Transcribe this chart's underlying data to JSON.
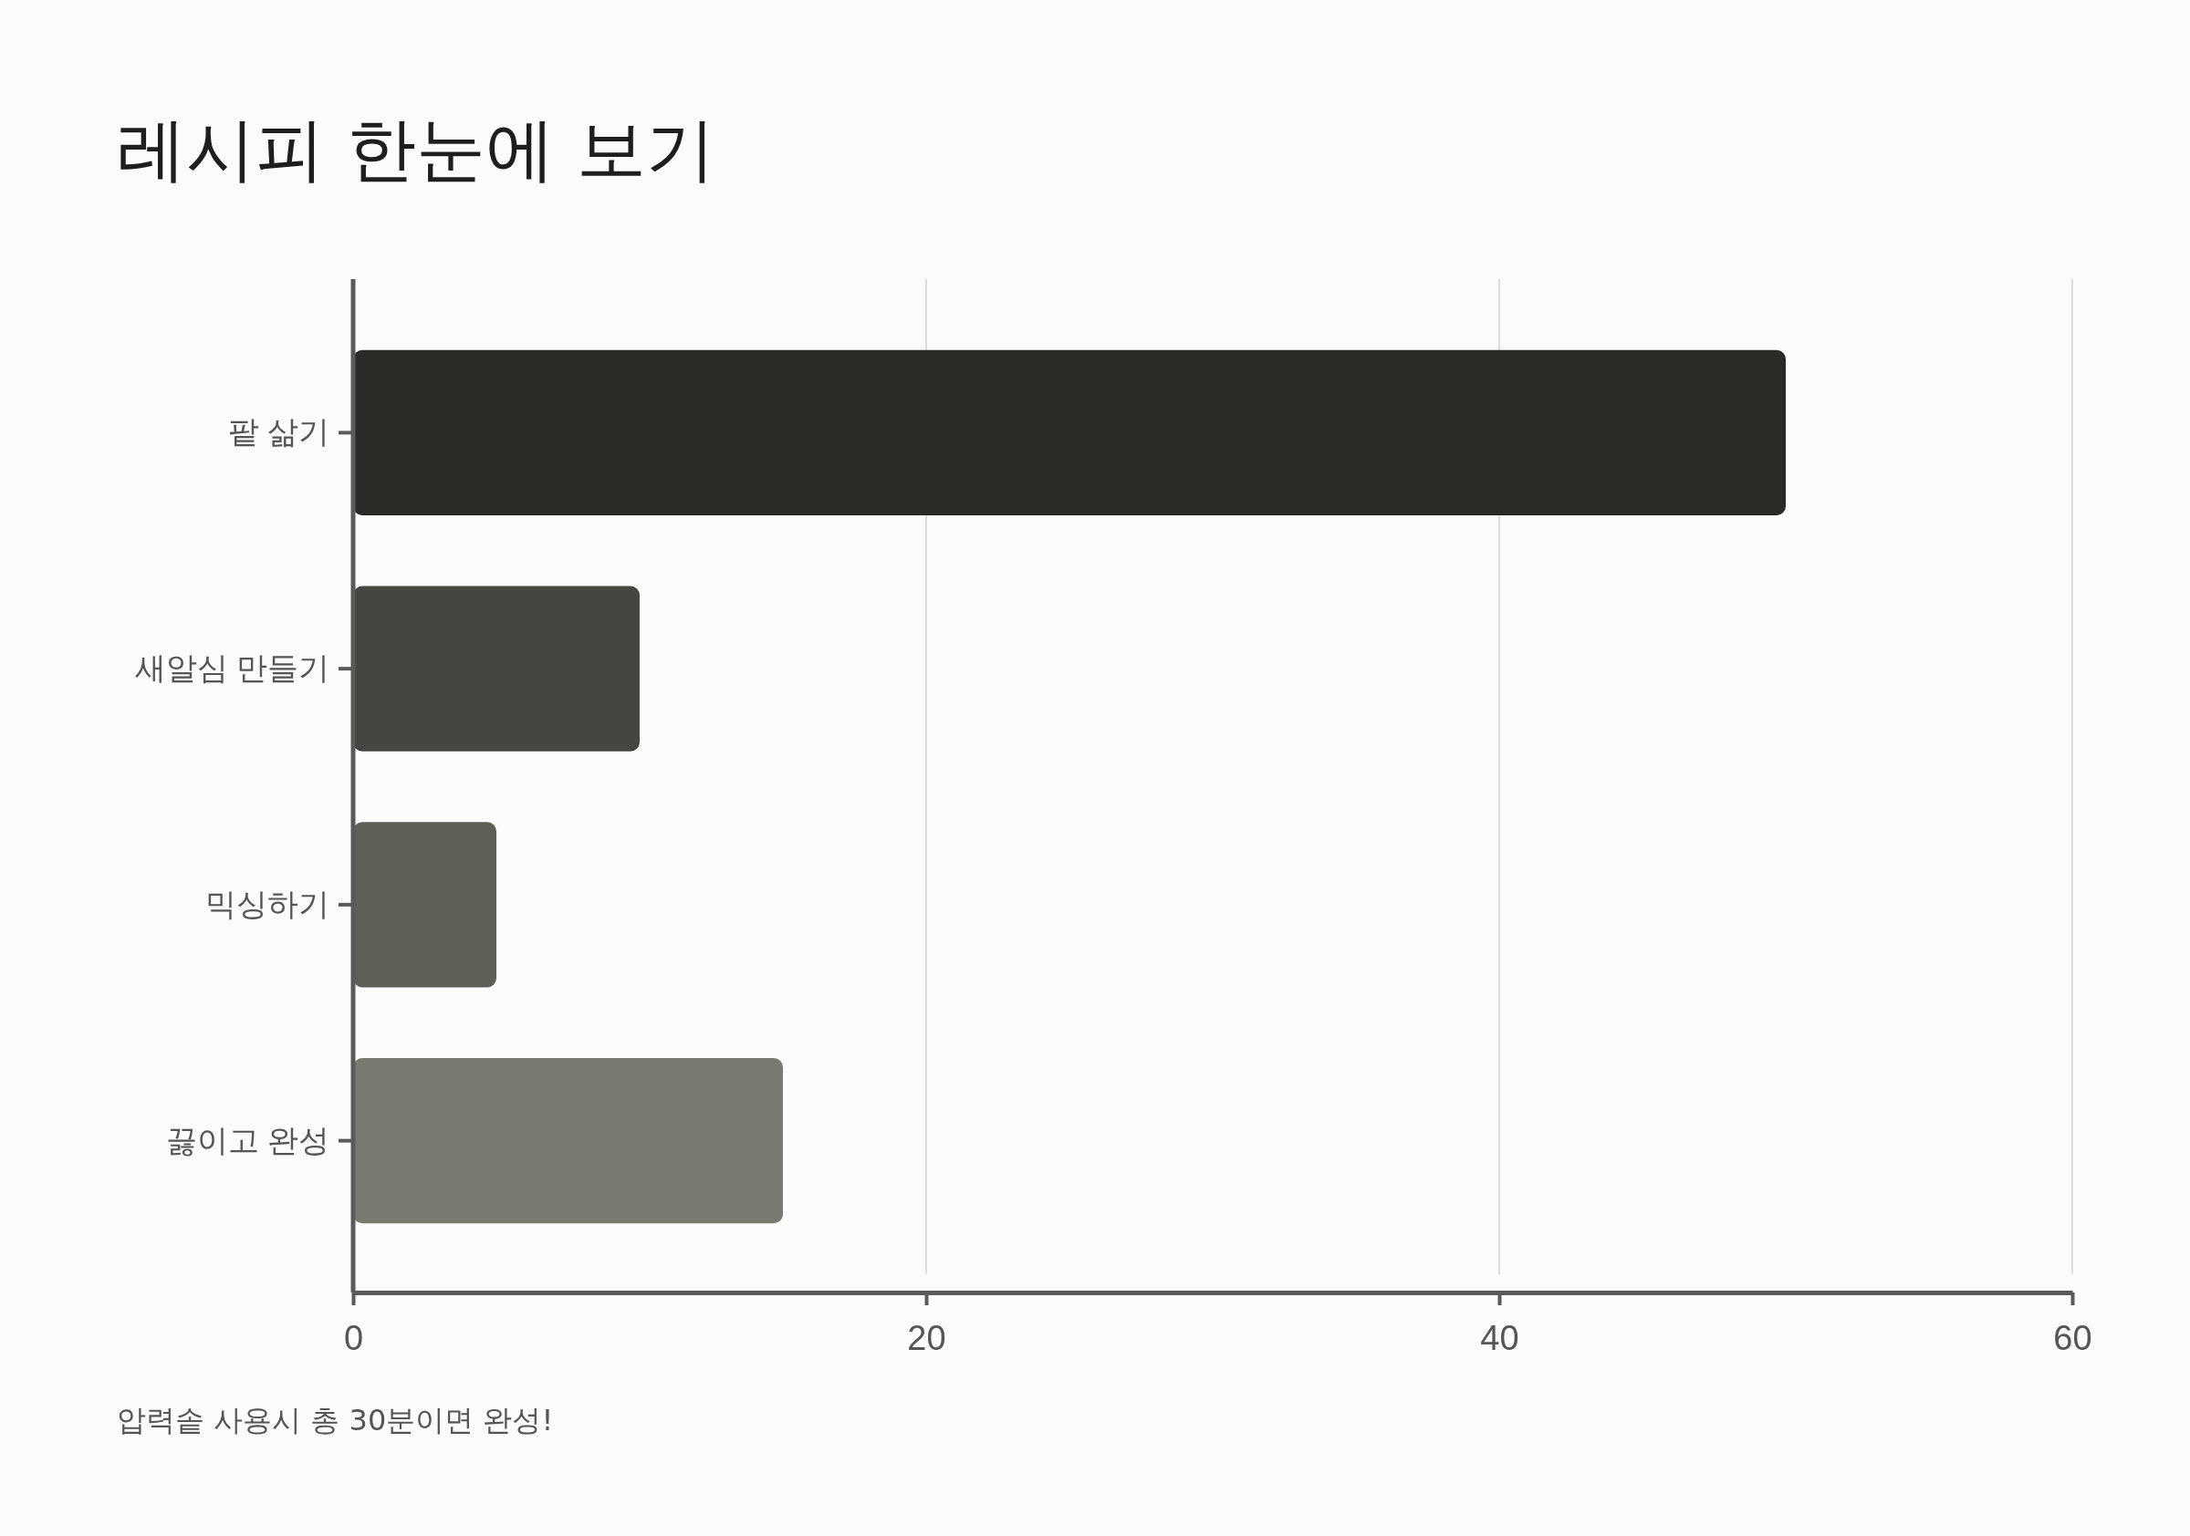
{
  "chart_data": {
    "type": "bar",
    "orientation": "horizontal",
    "title": "레시피 한눈에 보기",
    "categories": [
      "팥 삶기",
      "새알심 만들기",
      "믹싱하기",
      "끓이고 완성"
    ],
    "values": [
      50,
      10,
      5,
      15
    ],
    "colors": [
      "#2a2b26",
      "#454640",
      "#5f5f56",
      "#7a7a70"
    ],
    "xlim": [
      0,
      60
    ],
    "xticks": [
      0,
      20,
      40,
      60
    ],
    "grid": "x",
    "annotations": [
      "압력솥 사용시 총 30분이면 완성!"
    ]
  }
}
